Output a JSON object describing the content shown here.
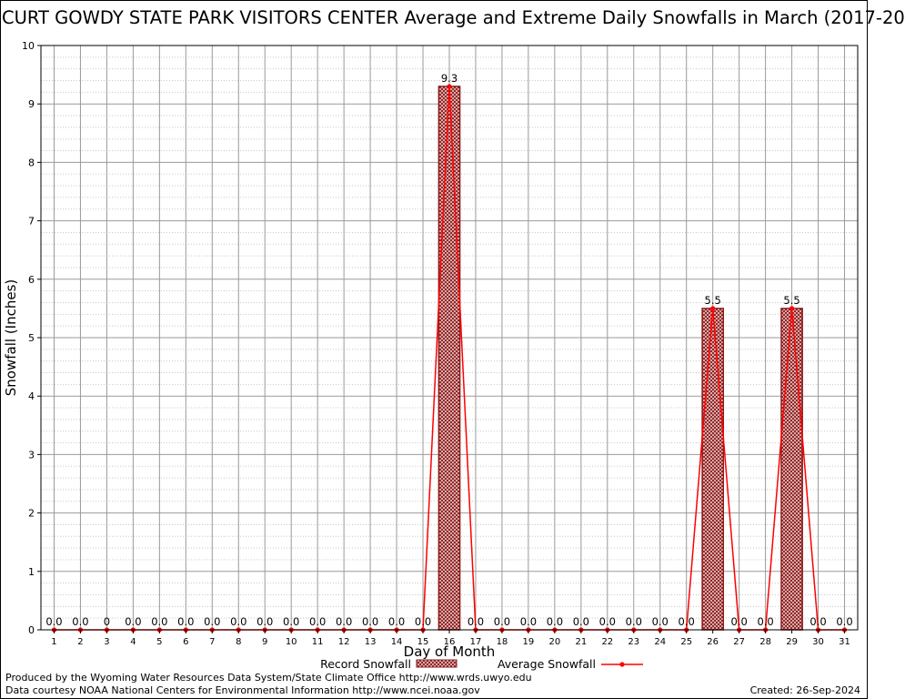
{
  "title": "CURT GOWDY STATE PARK VISITORS CENTER Average and Extreme Daily Snowfalls in March (2017-20",
  "credits": {
    "line1": "Produced by the Wyoming Water Resources Data System/State Climate Office http://www.wrds.uwyo.edu",
    "line2": "Data courtesy NOAA National Centers for Environmental Information http://www.ncei.noaa.gov",
    "created": "Created:  26-Sep-2024"
  },
  "chart_data": {
    "type": "bar",
    "xlabel": "Day of Month",
    "ylabel": "Snowfall (Inches)",
    "xlim": [
      0.5,
      31.5
    ],
    "ylim": [
      0,
      10
    ],
    "yticks": [
      "0",
      "1",
      "2",
      "3",
      "4",
      "5",
      "6",
      "7",
      "8",
      "9",
      "10"
    ],
    "categories": [
      "1",
      "2",
      "3",
      "4",
      "5",
      "6",
      "7",
      "8",
      "9",
      "10",
      "11",
      "12",
      "13",
      "14",
      "15",
      "16",
      "17",
      "18",
      "19",
      "20",
      "21",
      "22",
      "23",
      "24",
      "25",
      "26",
      "27",
      "28",
      "29",
      "30",
      "31"
    ],
    "grid": true,
    "legend_position": "bottom-center",
    "series": [
      {
        "name": "Record Snowfall",
        "kind": "bar",
        "color": "#8b1a1a",
        "values": [
          0,
          0,
          0,
          0,
          0,
          0,
          0,
          0,
          0,
          0,
          0,
          0,
          0,
          0,
          0,
          9.3,
          0,
          0,
          0,
          0,
          0,
          0,
          0,
          0,
          0,
          5.5,
          0,
          0,
          5.5,
          0,
          0
        ],
        "labels": [
          "0.0",
          "0.0",
          "0",
          "0.0",
          "0.0",
          "0.0",
          "0.0",
          "0.0",
          "0.0",
          "0.0",
          "0.0",
          "0.0",
          "0.0",
          "0.0",
          "0.0",
          "9.3",
          "0.0",
          "0.0",
          "0.0",
          "0.0",
          "0.0",
          "0.0",
          "0.0",
          "0.0",
          "0.0",
          "5.5",
          "0.0",
          "0.0",
          "5.5",
          "0.0",
          "0.0"
        ]
      },
      {
        "name": "Average Snowfall",
        "kind": "line",
        "color": "#ff0000",
        "values": [
          0,
          0,
          0,
          0,
          0,
          0,
          0,
          0,
          0,
          0,
          0,
          0,
          0,
          0,
          0,
          9.3,
          0,
          0,
          0,
          0,
          0,
          0,
          0,
          0,
          0,
          5.5,
          0,
          0,
          5.5,
          0,
          0
        ]
      }
    ]
  }
}
